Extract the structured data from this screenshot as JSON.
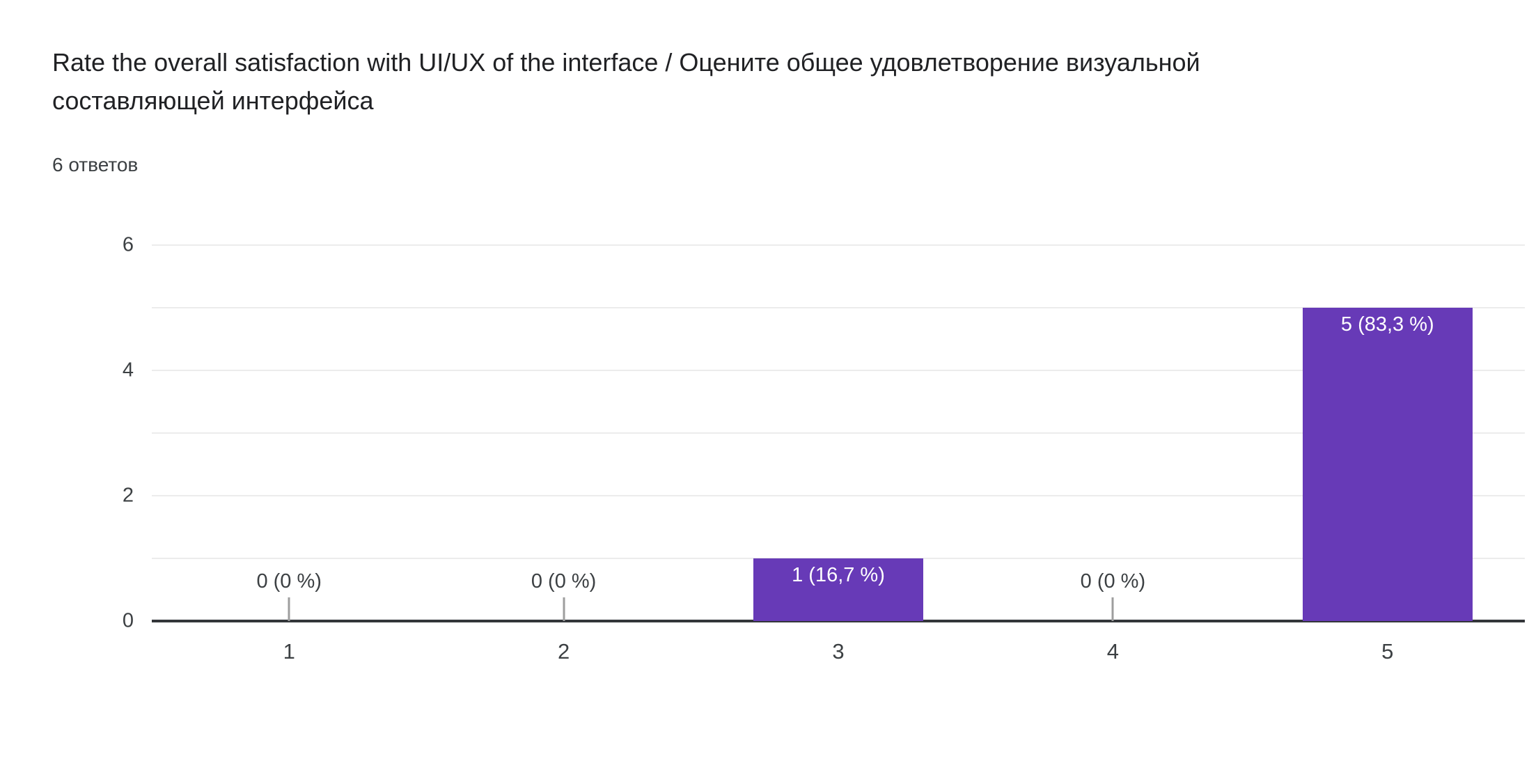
{
  "header": {
    "title": "Rate the overall satisfaction with UI/UX of the interface / Оцените общее удовлетворение визуальной составляющей интерфейса",
    "response_count": "6 ответов"
  },
  "chart_data": {
    "type": "bar",
    "title": "Rate the overall satisfaction with UI/UX of the interface / Оцените общее удовлетворение визуальной составляющей интерфейса",
    "subtitle": "6 ответов",
    "total_responses": 6,
    "categories": [
      "1",
      "2",
      "3",
      "4",
      "5"
    ],
    "values": [
      0,
      0,
      1,
      0,
      5
    ],
    "percentages": [
      0,
      0,
      16.7,
      0,
      83.3
    ],
    "value_labels": [
      "0 (0 %)",
      "0 (0 %)",
      "1 (16,7 %)",
      "0 (0 %)",
      "5 (83,3 %)"
    ],
    "xlabel": "",
    "ylabel": "",
    "yticks": [
      0,
      2,
      4,
      6
    ],
    "ylim": [
      0,
      6
    ],
    "grid": "horizontal",
    "legend": "none",
    "colors": {
      "bar": "#673ab7",
      "bar_label_text": "#ffffff",
      "outside_label_text": "#3c4043",
      "gridline": "#ececec",
      "axis_line": "#333639",
      "zero_tick_stub": "#9e9e9e",
      "title_text": "#202124",
      "tick_text": "#3c4043"
    }
  }
}
